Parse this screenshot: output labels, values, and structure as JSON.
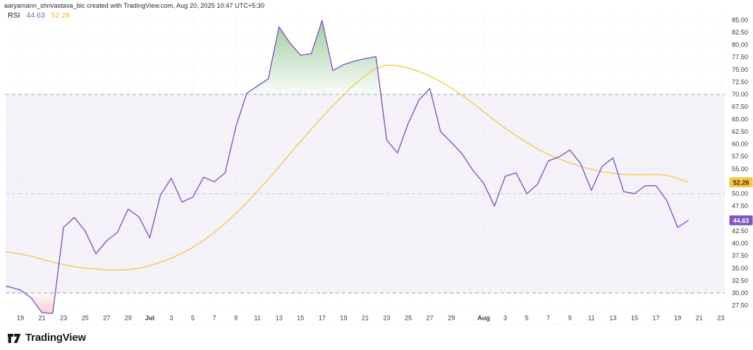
{
  "page": {
    "attribution": "aaryamann_shrivastava_bic created with TradingView.com, Aug 20, 2025 10:47 UTC+5:30",
    "watermark_text": "TradingView"
  },
  "legend": {
    "indicator": "RSI",
    "rsi_value": "44.63",
    "ma_value": "52.28"
  },
  "axes": {
    "y_ticks": [
      "85.00",
      "82.50",
      "80.00",
      "77.50",
      "75.00",
      "72.50",
      "70.00",
      "67.50",
      "65.00",
      "62.50",
      "60.00",
      "57.50",
      "55.00",
      "52.50",
      "50.00",
      "47.50",
      "45.00",
      "42.50",
      "40.00",
      "37.50",
      "35.00",
      "32.50",
      "30.00",
      "27.50"
    ],
    "x_ticks": [
      {
        "label": "19",
        "offset": 0
      },
      {
        "label": "21",
        "offset": 2
      },
      {
        "label": "23",
        "offset": 4
      },
      {
        "label": "25",
        "offset": 6
      },
      {
        "label": "27",
        "offset": 8
      },
      {
        "label": "29",
        "offset": 10
      },
      {
        "label": "Jul",
        "offset": 12,
        "month": true
      },
      {
        "label": "3",
        "offset": 14
      },
      {
        "label": "5",
        "offset": 16
      },
      {
        "label": "7",
        "offset": 18
      },
      {
        "label": "9",
        "offset": 20
      },
      {
        "label": "11",
        "offset": 22
      },
      {
        "label": "13",
        "offset": 24
      },
      {
        "label": "15",
        "offset": 26
      },
      {
        "label": "17",
        "offset": 28
      },
      {
        "label": "19",
        "offset": 30
      },
      {
        "label": "21",
        "offset": 32
      },
      {
        "label": "23",
        "offset": 34
      },
      {
        "label": "25",
        "offset": 36
      },
      {
        "label": "27",
        "offset": 38
      },
      {
        "label": "29",
        "offset": 40
      },
      {
        "label": "Aug",
        "offset": 43,
        "month": true
      },
      {
        "label": "3",
        "offset": 45
      },
      {
        "label": "5",
        "offset": 47
      },
      {
        "label": "7",
        "offset": 49
      },
      {
        "label": "9",
        "offset": 51
      },
      {
        "label": "11",
        "offset": 53
      },
      {
        "label": "13",
        "offset": 55
      },
      {
        "label": "15",
        "offset": 57
      },
      {
        "label": "17",
        "offset": 59
      },
      {
        "label": "19",
        "offset": 61
      },
      {
        "label": "21",
        "offset": 63
      },
      {
        "label": "23",
        "offset": 65
      }
    ]
  },
  "badges": [
    {
      "text": "52.28",
      "value": 52.28,
      "bg": "#f6c444",
      "fg": "#3f2e03"
    },
    {
      "text": "44.63",
      "value": 44.63,
      "bg": "#7e57c2",
      "fg": "#ffffff"
    }
  ],
  "chart_data": {
    "type": "line",
    "title": "RSI",
    "x_unit": "day",
    "start_offset": -2,
    "overbought": 70,
    "midline": 50,
    "oversold": 30,
    "ylim": [
      25.7,
      86.9
    ],
    "y_tick_step": 2.5,
    "grid": true,
    "dates": [
      "Jun 17",
      "Jun 18",
      "Jun 19",
      "Jun 20",
      "Jun 21",
      "Jun 22",
      "Jun 23",
      "Jun 24",
      "Jun 25",
      "Jun 26",
      "Jun 27",
      "Jun 28",
      "Jun 29",
      "Jun 30",
      "Jul 1",
      "Jul 2",
      "Jul 3",
      "Jul 4",
      "Jul 5",
      "Jul 6",
      "Jul 7",
      "Jul 8",
      "Jul 9",
      "Jul 10",
      "Jul 11",
      "Jul 12",
      "Jul 13",
      "Jul 14",
      "Jul 15",
      "Jul 16",
      "Jul 17",
      "Jul 18",
      "Jul 19",
      "Jul 20",
      "Jul 21",
      "Jul 22",
      "Jul 23",
      "Jul 24",
      "Jul 25",
      "Jul 26",
      "Jul 27",
      "Jul 28",
      "Jul 29",
      "Jul 30",
      "Jul 31",
      "Aug 1",
      "Aug 2",
      "Aug 3",
      "Aug 4",
      "Aug 5",
      "Aug 6",
      "Aug 7",
      "Aug 8",
      "Aug 9",
      "Aug 10",
      "Aug 11",
      "Aug 12",
      "Aug 13",
      "Aug 14",
      "Aug 15",
      "Aug 16",
      "Aug 17",
      "Aug 18",
      "Aug 19",
      "Aug 20"
    ],
    "series": [
      {
        "name": "RSI",
        "current": 44.63,
        "values": [
          31.6,
          31.2,
          30.6,
          29.0,
          26.0,
          25.9,
          43.2,
          45.2,
          42.5,
          37.9,
          40.5,
          42.2,
          46.9,
          45.3,
          41.1,
          49.7,
          53.1,
          48.3,
          49.3,
          53.3,
          52.4,
          54.2,
          63.5,
          70.2,
          71.7,
          73.1,
          83.6,
          80.4,
          77.9,
          78.2,
          84.9,
          74.8,
          76.0,
          76.7,
          77.2,
          77.6,
          60.8,
          58.2,
          64.2,
          68.9,
          71.2,
          62.5,
          60.3,
          58.0,
          54.7,
          52.1,
          47.5,
          53.5,
          54.2,
          50.0,
          51.9,
          56.6,
          57.4,
          58.8,
          56.0,
          50.7,
          55.5,
          57.2,
          50.4,
          50.0,
          51.6,
          51.6,
          48.6,
          43.2,
          44.63
        ]
      },
      {
        "name": "RSI-based MA",
        "current": 52.28,
        "values": [
          38.6,
          38.2,
          37.9,
          37.4,
          36.8,
          36.2,
          35.7,
          35.3,
          35.0,
          34.8,
          34.6,
          34.6,
          34.7,
          35.0,
          35.5,
          36.2,
          37.0,
          38.0,
          39.2,
          40.6,
          42.2,
          44.0,
          46.0,
          48.2,
          50.5,
          52.9,
          55.4,
          58.0,
          60.5,
          63.0,
          65.4,
          67.7,
          69.9,
          72.0,
          73.8,
          75.2,
          75.9,
          75.8,
          75.3,
          74.6,
          73.7,
          72.6,
          71.3,
          69.8,
          68.2,
          66.5,
          64.8,
          63.2,
          61.7,
          60.3,
          59.0,
          57.9,
          57.0,
          56.2,
          55.5,
          54.9,
          54.4,
          54.1,
          53.9,
          53.8,
          53.8,
          53.9,
          53.7,
          53.1,
          52.28
        ]
      }
    ]
  },
  "colors": {
    "rsi_line": "#7e57c2",
    "ma_line": "#f3cb4d",
    "legend_ma_text": "#efb90e",
    "band_fill": "rgba(126,87,194,0.08)",
    "overbought_green": "#43a047",
    "oversold_red": "#ef5350",
    "dashed_strong": "#9aa0ab",
    "dashed_mid": "#c6c9d3",
    "grid": "rgba(150,153,163,0.22)",
    "axis_text": "#363a45",
    "separator": "#c9ccd6"
  }
}
